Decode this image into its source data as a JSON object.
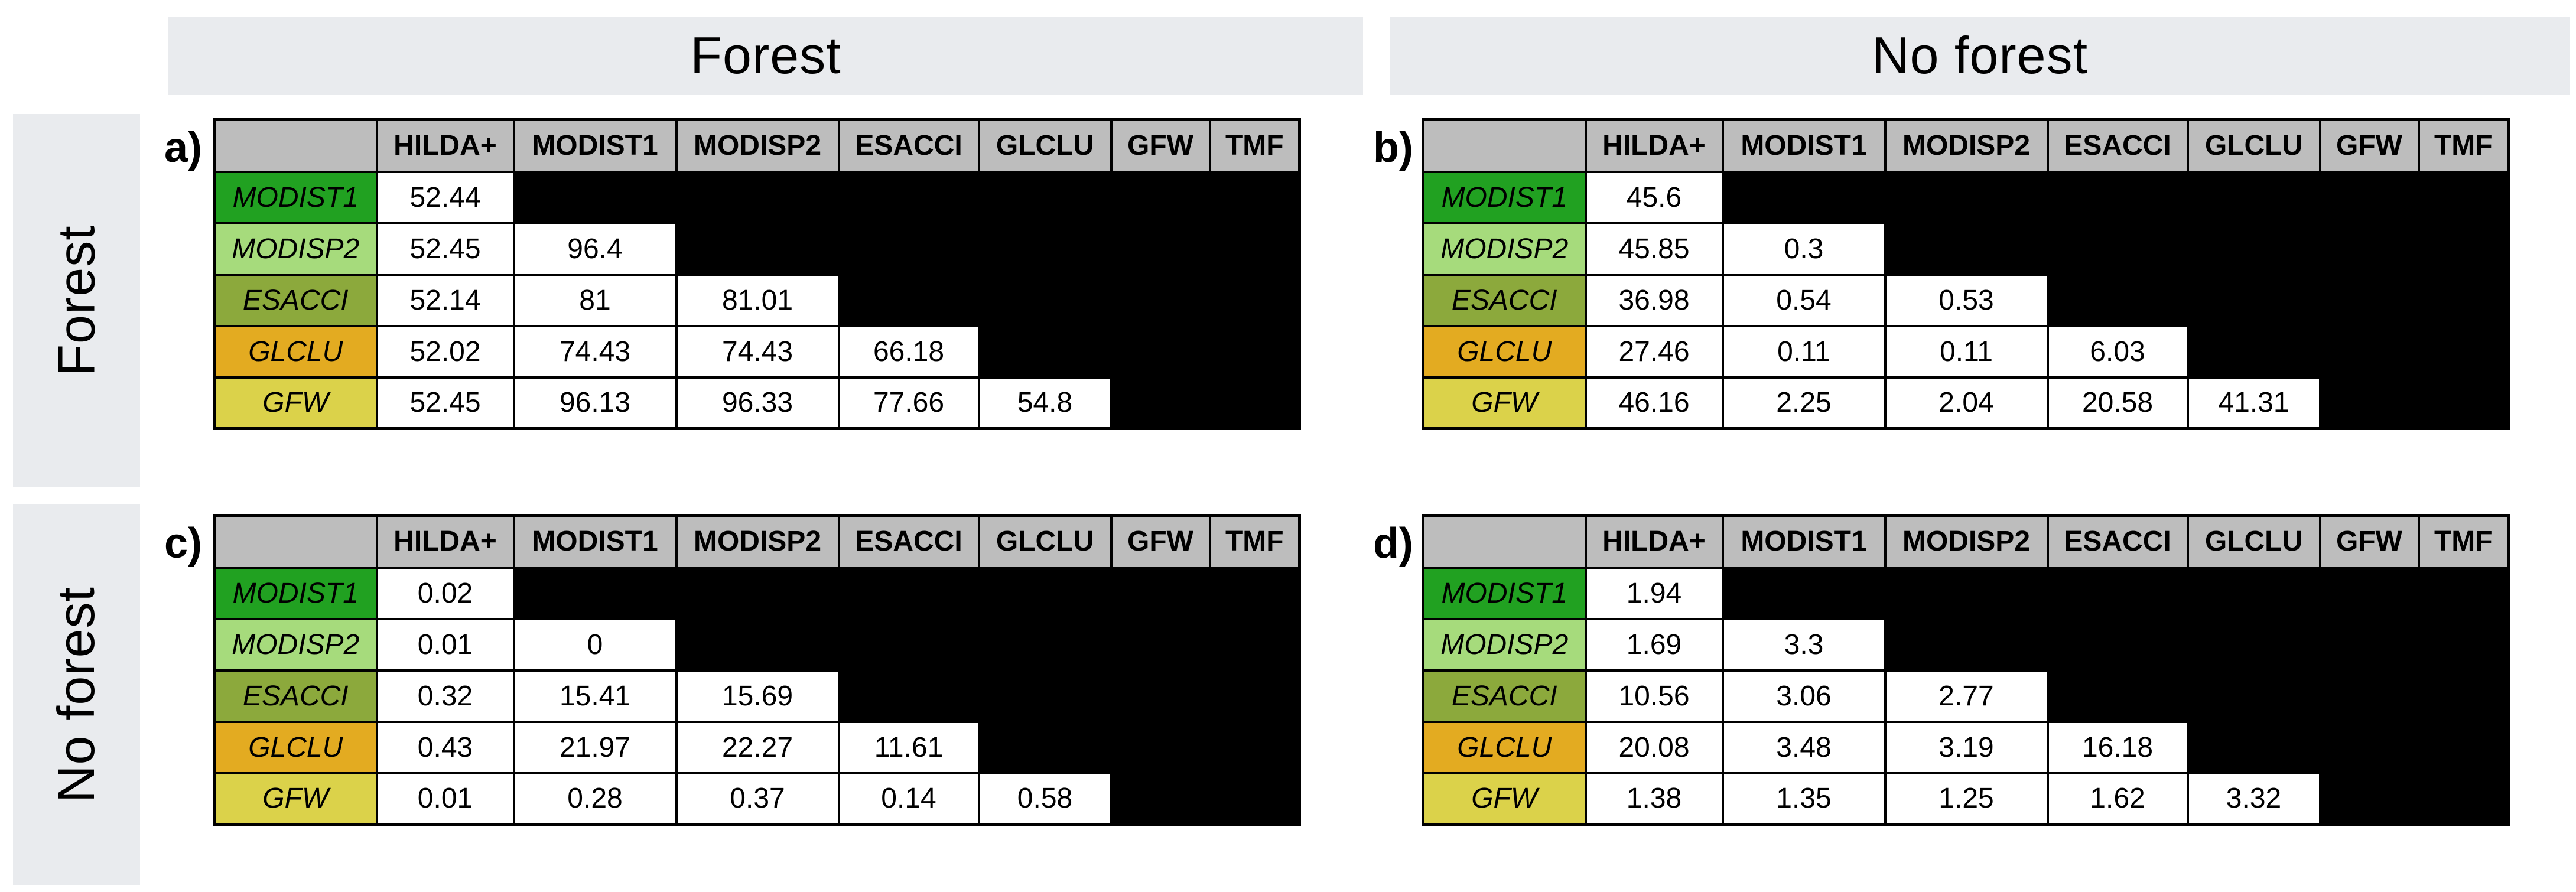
{
  "figure": {
    "top_bands": [
      {
        "label": "Forest"
      },
      {
        "label": "No forest"
      }
    ],
    "side_bands": [
      {
        "label": "Forest"
      },
      {
        "label": "No forest"
      }
    ]
  },
  "columns": [
    "",
    "HILDA+",
    "MODIST1",
    "MODISP2",
    "ESACCI",
    "GLCLU",
    "GFW",
    "TMF"
  ],
  "rows": [
    {
      "name": "MODIST1",
      "color": "#21A121"
    },
    {
      "name": "MODISP2",
      "color": "#A6DB7C"
    },
    {
      "name": "ESACCI",
      "color": "#8CA93C"
    },
    {
      "name": "GLCLU",
      "color": "#E3AB21"
    },
    {
      "name": "GFW",
      "color": "#DBD24A"
    }
  ],
  "colors": {
    "band_bg": "#E9EBEE",
    "header_bg": "#BDBDBD",
    "value_bg": "#FFFFFF",
    "empty_bg": "#000000",
    "border": "#000000"
  },
  "tables": [
    {
      "id": "a",
      "label": "a)",
      "row_group": "Forest",
      "col_group": "Forest",
      "values": [
        [
          "52.44"
        ],
        [
          "52.45",
          "96.4"
        ],
        [
          "52.14",
          "81",
          "81.01"
        ],
        [
          "52.02",
          "74.43",
          "74.43",
          "66.18"
        ],
        [
          "52.45",
          "96.13",
          "96.33",
          "77.66",
          "54.8"
        ]
      ]
    },
    {
      "id": "b",
      "label": "b)",
      "row_group": "Forest",
      "col_group": "No forest",
      "values": [
        [
          "45.6"
        ],
        [
          "45.85",
          "0.3"
        ],
        [
          "36.98",
          "0.54",
          "0.53"
        ],
        [
          "27.46",
          "0.11",
          "0.11",
          "6.03"
        ],
        [
          "46.16",
          "2.25",
          "2.04",
          "20.58",
          "41.31"
        ]
      ]
    },
    {
      "id": "c",
      "label": "c)",
      "row_group": "No forest",
      "col_group": "Forest",
      "values": [
        [
          "0.02"
        ],
        [
          "0.01",
          "0"
        ],
        [
          "0.32",
          "15.41",
          "15.69"
        ],
        [
          "0.43",
          "21.97",
          "22.27",
          "11.61"
        ],
        [
          "0.01",
          "0.28",
          "0.37",
          "0.14",
          "0.58"
        ]
      ]
    },
    {
      "id": "d",
      "label": "d)",
      "row_group": "No forest",
      "col_group": "No forest",
      "values": [
        [
          "1.94"
        ],
        [
          "1.69",
          "3.3"
        ],
        [
          "10.56",
          "3.06",
          "2.77"
        ],
        [
          "20.08",
          "3.48",
          "3.19",
          "16.18"
        ],
        [
          "1.38",
          "1.35",
          "1.25",
          "1.62",
          "3.32"
        ]
      ]
    }
  ],
  "chart_data": [
    {
      "type": "table",
      "panel": "a",
      "title": "Forest (rows) vs Forest (columns)",
      "columns": [
        "HILDA+",
        "MODIST1",
        "MODISP2",
        "ESACCI",
        "GLCLU",
        "GFW",
        "TMF"
      ],
      "row_labels": [
        "MODIST1",
        "MODISP2",
        "ESACCI",
        "GLCLU",
        "GFW"
      ],
      "matrix": [
        [
          52.44,
          null,
          null,
          null,
          null,
          null,
          null
        ],
        [
          52.45,
          96.4,
          null,
          null,
          null,
          null,
          null
        ],
        [
          52.14,
          81,
          81.01,
          null,
          null,
          null,
          null
        ],
        [
          52.02,
          74.43,
          74.43,
          66.18,
          null,
          null,
          null
        ],
        [
          52.45,
          96.13,
          96.33,
          77.66,
          54.8,
          null,
          null
        ]
      ]
    },
    {
      "type": "table",
      "panel": "b",
      "title": "Forest (rows) vs No forest (columns)",
      "columns": [
        "HILDA+",
        "MODIST1",
        "MODISP2",
        "ESACCI",
        "GLCLU",
        "GFW",
        "TMF"
      ],
      "row_labels": [
        "MODIST1",
        "MODISP2",
        "ESACCI",
        "GLCLU",
        "GFW"
      ],
      "matrix": [
        [
          45.6,
          null,
          null,
          null,
          null,
          null,
          null
        ],
        [
          45.85,
          0.3,
          null,
          null,
          null,
          null,
          null
        ],
        [
          36.98,
          0.54,
          0.53,
          null,
          null,
          null,
          null
        ],
        [
          27.46,
          0.11,
          0.11,
          6.03,
          null,
          null,
          null
        ],
        [
          46.16,
          2.25,
          2.04,
          20.58,
          41.31,
          null,
          null
        ]
      ]
    },
    {
      "type": "table",
      "panel": "c",
      "title": "No forest (rows) vs Forest (columns)",
      "columns": [
        "HILDA+",
        "MODIST1",
        "MODISP2",
        "ESACCI",
        "GLCLU",
        "GFW",
        "TMF"
      ],
      "row_labels": [
        "MODIST1",
        "MODISP2",
        "ESACCI",
        "GLCLU",
        "GFW"
      ],
      "matrix": [
        [
          0.02,
          null,
          null,
          null,
          null,
          null,
          null
        ],
        [
          0.01,
          0,
          null,
          null,
          null,
          null,
          null
        ],
        [
          0.32,
          15.41,
          15.69,
          null,
          null,
          null,
          null
        ],
        [
          0.43,
          21.97,
          22.27,
          11.61,
          null,
          null,
          null
        ],
        [
          0.01,
          0.28,
          0.37,
          0.14,
          0.58,
          null,
          null
        ]
      ]
    },
    {
      "type": "table",
      "panel": "d",
      "title": "No forest (rows) vs No forest (columns)",
      "columns": [
        "HILDA+",
        "MODIST1",
        "MODISP2",
        "ESACCI",
        "GLCLU",
        "GFW",
        "TMF"
      ],
      "row_labels": [
        "MODIST1",
        "MODISP2",
        "ESACCI",
        "GLCLU",
        "GFW"
      ],
      "matrix": [
        [
          1.94,
          null,
          null,
          null,
          null,
          null,
          null
        ],
        [
          1.69,
          3.3,
          null,
          null,
          null,
          null,
          null
        ],
        [
          10.56,
          3.06,
          2.77,
          null,
          null,
          null,
          null
        ],
        [
          20.08,
          3.48,
          3.19,
          16.18,
          null,
          null,
          null
        ],
        [
          1.38,
          1.35,
          1.25,
          1.62,
          3.32,
          null,
          null
        ]
      ]
    }
  ]
}
